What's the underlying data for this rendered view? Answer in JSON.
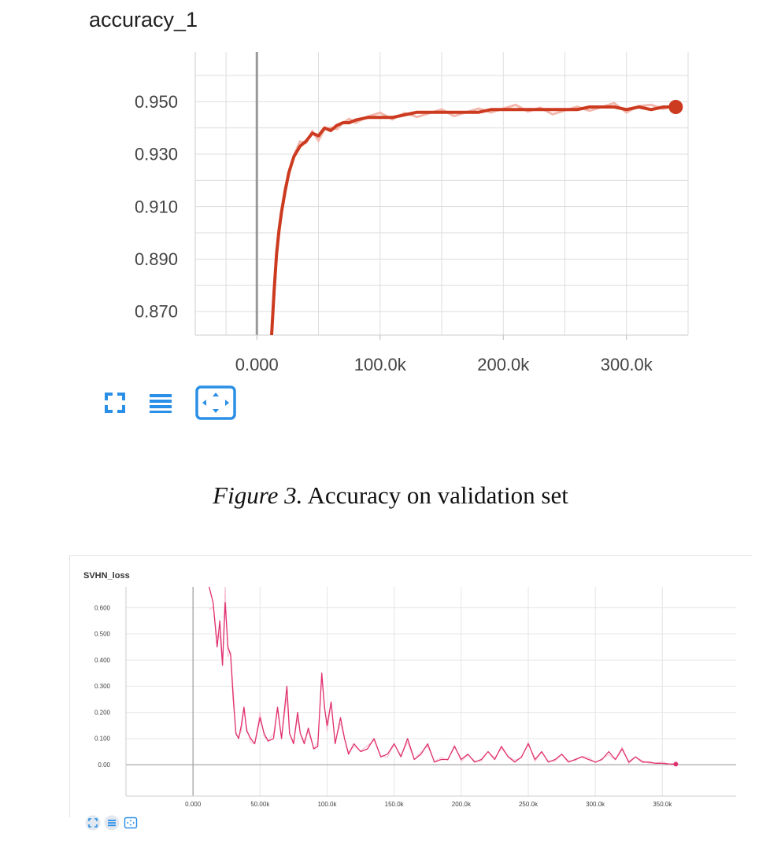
{
  "caption": {
    "figure_label": "Figure 3.",
    "text": "Accuracy on validation set"
  },
  "colors": {
    "accuracy_line": "#cc3a1f",
    "accuracy_raw": "#f2b8ad",
    "loss_line": "#e0306f",
    "loss_raw": "#f6bfd1",
    "grid": "#dddddd",
    "zero_axis": "#999999",
    "toolbar_blue": "#2a8fe6"
  },
  "toolbar": {
    "icons": [
      "expand-icon",
      "list-icon",
      "fit-domain-icon"
    ]
  },
  "chart_data": [
    {
      "type": "line",
      "title": "accuracy_1",
      "xlabel": "",
      "ylabel": "",
      "x_tick_labels": [
        "0.000",
        "100.0k",
        "200.0k",
        "300.0k"
      ],
      "x_ticks": [
        0,
        100000,
        200000,
        300000
      ],
      "y_tick_labels": [
        "0.950",
        "0.930",
        "0.910",
        "0.890",
        "0.870"
      ],
      "y_ticks": [
        0.95,
        0.93,
        0.91,
        0.89,
        0.87
      ],
      "xlim": [
        -50000,
        350000
      ],
      "ylim": [
        0.861,
        0.969
      ],
      "grid": true,
      "series": [
        {
          "x": [
            12000,
            14000,
            16000,
            18000,
            20000,
            23000,
            26000,
            30000,
            35000,
            40000,
            45000,
            50000,
            55000,
            60000,
            65000,
            70000,
            75000,
            80000,
            90000,
            100000,
            110000,
            120000,
            130000,
            140000,
            150000,
            160000,
            170000,
            180000,
            190000,
            200000,
            210000,
            220000,
            230000,
            240000,
            250000,
            260000,
            270000,
            280000,
            290000,
            300000,
            310000,
            320000,
            330000,
            340000
          ],
          "y": [
            0.861,
            0.878,
            0.892,
            0.901,
            0.908,
            0.916,
            0.923,
            0.929,
            0.933,
            0.935,
            0.938,
            0.937,
            0.94,
            0.939,
            0.941,
            0.942,
            0.942,
            0.943,
            0.944,
            0.944,
            0.944,
            0.945,
            0.946,
            0.946,
            0.946,
            0.946,
            0.946,
            0.946,
            0.947,
            0.947,
            0.947,
            0.947,
            0.947,
            0.947,
            0.947,
            0.947,
            0.948,
            0.948,
            0.948,
            0.947,
            0.948,
            0.947,
            0.948,
            0.948
          ]
        }
      ]
    },
    {
      "type": "line",
      "title": "SVHN_loss",
      "xlabel": "",
      "ylabel": "",
      "x_tick_labels": [
        "0.000",
        "50.00k",
        "100.0k",
        "150.0k",
        "200.0k",
        "250.0k",
        "300.0k",
        "350.0k"
      ],
      "x_ticks": [
        0,
        50000,
        100000,
        150000,
        200000,
        250000,
        300000,
        350000
      ],
      "y_tick_labels": [
        "0.600",
        "0.500",
        "0.400",
        "0.300",
        "0.200",
        "0.100",
        "0.00"
      ],
      "y_ticks": [
        0.6,
        0.5,
        0.4,
        0.3,
        0.2,
        0.1,
        0.0
      ],
      "xlim": [
        -50000,
        405000
      ],
      "ylim": [
        -0.12,
        0.68
      ],
      "grid": true,
      "series": [
        {
          "x": [
            12000,
            15000,
            18000,
            20000,
            22000,
            24000,
            26000,
            28000,
            30000,
            32000,
            34000,
            36000,
            38000,
            40000,
            43000,
            46000,
            50000,
            53000,
            56000,
            60000,
            63000,
            66000,
            70000,
            72000,
            75000,
            78000,
            80000,
            83000,
            86000,
            90000,
            93000,
            96000,
            98000,
            100000,
            103000,
            106000,
            110000,
            113000,
            116000,
            120000,
            125000,
            130000,
            135000,
            140000,
            145000,
            150000,
            155000,
            160000,
            165000,
            170000,
            175000,
            180000,
            185000,
            190000,
            195000,
            200000,
            205000,
            210000,
            215000,
            220000,
            225000,
            230000,
            235000,
            240000,
            245000,
            250000,
            255000,
            260000,
            265000,
            270000,
            275000,
            280000,
            285000,
            290000,
            295000,
            300000,
            305000,
            310000,
            315000,
            320000,
            325000,
            330000,
            335000,
            340000,
            345000,
            350000,
            355000,
            360000
          ],
          "y": [
            0.68,
            0.62,
            0.45,
            0.55,
            0.38,
            0.62,
            0.45,
            0.42,
            0.25,
            0.12,
            0.1,
            0.15,
            0.22,
            0.13,
            0.1,
            0.08,
            0.18,
            0.12,
            0.09,
            0.1,
            0.22,
            0.1,
            0.3,
            0.12,
            0.08,
            0.2,
            0.12,
            0.08,
            0.14,
            0.06,
            0.07,
            0.35,
            0.22,
            0.15,
            0.24,
            0.08,
            0.18,
            0.1,
            0.04,
            0.08,
            0.05,
            0.06,
            0.1,
            0.03,
            0.04,
            0.08,
            0.03,
            0.1,
            0.02,
            0.04,
            0.08,
            0.01,
            0.02,
            0.02,
            0.07,
            0.02,
            0.04,
            0.01,
            0.02,
            0.05,
            0.02,
            0.07,
            0.03,
            0.01,
            0.03,
            0.08,
            0.02,
            0.05,
            0.01,
            0.02,
            0.04,
            0.01,
            0.02,
            0.03,
            0.02,
            0.01,
            0.02,
            0.05,
            0.02,
            0.06,
            0.01,
            0.03,
            0.01,
            0.01,
            0.005,
            0.005,
            0.003,
            0.002
          ]
        }
      ]
    }
  ]
}
